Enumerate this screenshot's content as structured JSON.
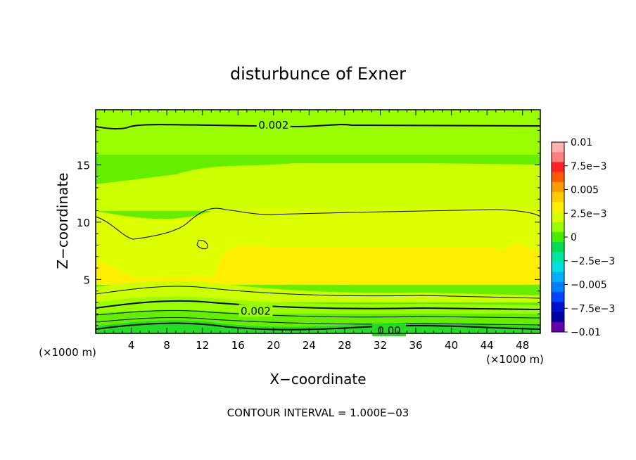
{
  "chart_data": {
    "type": "heatmap",
    "title": "disturbunce of Exner",
    "xlabel": "X−coordinate",
    "ylabel": "Z−coordinate",
    "x_unit": "(×1000 m)",
    "y_unit": "(×1000 m)",
    "footer": "CONTOUR INTERVAL = 1.000E−03",
    "xlim": [
      0,
      50
    ],
    "ylim": [
      0.3,
      19.8
    ],
    "xticks": [
      4,
      8,
      12,
      16,
      20,
      24,
      28,
      32,
      36,
      40,
      44,
      48
    ],
    "yticks": [
      5,
      10,
      15
    ],
    "colorbar": {
      "ticks": [
        "0.01",
        "7.5e−3",
        "0.005",
        "2.5e−3",
        "0",
        "−2.5e−3",
        "−0.005",
        "−7.5e−3",
        "−0.01"
      ],
      "colors": [
        "#ffb0b0",
        "#ff7f7f",
        "#ff2222",
        "#ff5a00",
        "#ff9a00",
        "#ffcc00",
        "#ffee00",
        "#d8ff00",
        "#99ff00",
        "#44ee00",
        "#00dd55",
        "#00e8a0",
        "#00e0e0",
        "#00b0ff",
        "#0080ff",
        "#0044ff",
        "#0010cc",
        "#0000a0",
        "#6600aa"
      ]
    },
    "contour_labels": [
      {
        "text": "0.002",
        "x": 20,
        "z": 18.5
      },
      {
        "text": "0.002",
        "x": 18,
        "z": 2.3
      },
      {
        "text": "0.00",
        "x": 33,
        "z": 0.6
      }
    ]
  }
}
